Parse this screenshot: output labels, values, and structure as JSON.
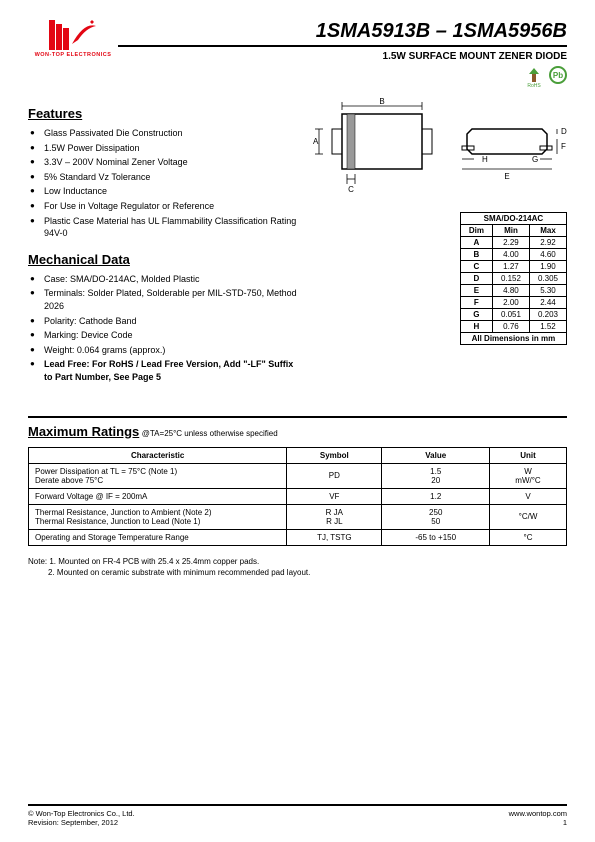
{
  "header": {
    "logo_text": "WON-TOP ELECTRONICS",
    "part_title": "1SMA5913B – 1SMA5956B",
    "subtitle": "1.5W SURFACE MOUNT ZENER DIODE"
  },
  "features": {
    "title": "Features",
    "items": [
      "Glass Passivated Die Construction",
      "1.5W Power Dissipation",
      "3.3V – 200V Nominal Zener Voltage",
      "5% Standard Vz Tolerance",
      "Low Inductance",
      "For Use in Voltage Regulator or Reference",
      "Plastic Case Material has UL Flammability Classification Rating 94V-0"
    ]
  },
  "mechanical": {
    "title": "Mechanical Data",
    "items": [
      "Case: SMA/DO-214AC, Molded Plastic",
      "Terminals: Solder Plated, Solderable per MIL-STD-750, Method 2026",
      "Polarity: Cathode Band",
      "Marking: Device Code",
      "Weight: 0.064 grams (approx.)",
      "Lead Free: For RoHS / Lead Free Version, Add \"-LF\" Suffix to Part Number, See Page 5"
    ]
  },
  "dim_table": {
    "header": "SMA/DO-214AC",
    "cols": [
      "Dim",
      "Min",
      "Max"
    ],
    "rows": [
      [
        "A",
        "2.29",
        "2.92"
      ],
      [
        "B",
        "4.00",
        "4.60"
      ],
      [
        "C",
        "1.27",
        "1.90"
      ],
      [
        "D",
        "0.152",
        "0.305"
      ],
      [
        "E",
        "4.80",
        "5.30"
      ],
      [
        "F",
        "2.00",
        "2.44"
      ],
      [
        "G",
        "0.051",
        "0.203"
      ],
      [
        "H",
        "0.76",
        "1.52"
      ]
    ],
    "footer": "All Dimensions in mm"
  },
  "ratings": {
    "title": "Maximum Ratings",
    "subtitle": " @TA=25°C unless otherwise specified",
    "headers": [
      "Characteristic",
      "Symbol",
      "Value",
      "Unit"
    ],
    "rows": [
      {
        "char": "Power Dissipation at TL = 75°C (Note 1)\nDerate above 75°C",
        "symbol": "PD",
        "value": "1.5\n20",
        "unit": "W\nmW/°C"
      },
      {
        "char": "Forward Voltage @ IF = 200mA",
        "symbol": "VF",
        "value": "1.2",
        "unit": "V"
      },
      {
        "char": "Thermal Resistance, Junction to Ambient (Note 2)\nThermal Resistance, Junction to Lead (Note 1)",
        "symbol": "R JA\nR JL",
        "value": "250\n50",
        "unit": "°C/W"
      },
      {
        "char": "Operating and Storage Temperature Range",
        "symbol": "TJ, TSTG",
        "value": "-65 to +150",
        "unit": "°C"
      }
    ]
  },
  "notes": {
    "label": "Note: ",
    "items": [
      "1. Mounted on FR-4 PCB with 25.4 x 25.4mm copper pads.",
      "2. Mounted on ceramic substrate with minimum recommended pad layout."
    ]
  },
  "footer": {
    "left1": "© Won-Top Electronics Co., Ltd.",
    "left2": "Revision: September, 2012",
    "right1": "www.wontop.com",
    "right2": "1"
  },
  "colors": {
    "brand_red": "#e30613",
    "green": "#4a9e3a"
  }
}
